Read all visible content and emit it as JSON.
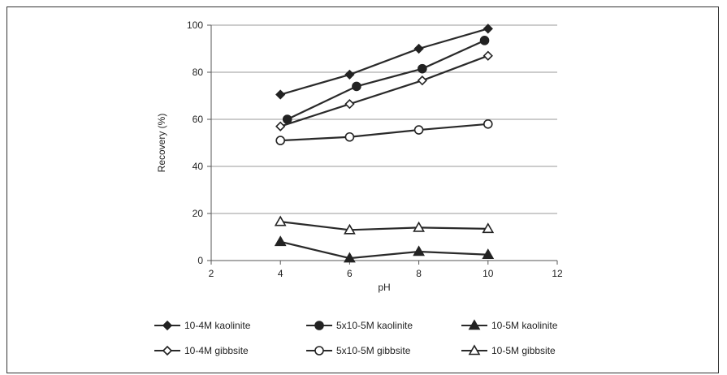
{
  "chart_data": {
    "type": "line",
    "title": "",
    "xlabel": "pH",
    "ylabel": "Recovery (%)",
    "xlim": [
      2,
      12
    ],
    "ylim": [
      0,
      100
    ],
    "xticks": [
      "2",
      "4",
      "6",
      "8",
      "10",
      "12"
    ],
    "yticks": [
      "0",
      "20",
      "40",
      "60",
      "80",
      "100"
    ],
    "grid": "horizontal",
    "legend_position": "bottom",
    "series": [
      {
        "name": "10-4M kaolinite",
        "marker": "diamond-filled",
        "x": [
          4,
          6,
          8,
          10
        ],
        "y": [
          70.5,
          79,
          90,
          98.5
        ]
      },
      {
        "name": "5x10-5M kaolinite",
        "marker": "circle-filled",
        "x": [
          4.2,
          6.2,
          8.1,
          9.9
        ],
        "y": [
          60,
          74,
          81.5,
          93.5
        ]
      },
      {
        "name": "10-5M kaolinite",
        "marker": "triangle-filled",
        "x": [
          4,
          6,
          8,
          10
        ],
        "y": [
          8,
          1,
          3.8,
          2.5
        ]
      },
      {
        "name": "10-4M gibbsite",
        "marker": "diamond-open",
        "x": [
          4,
          6,
          8.1,
          10
        ],
        "y": [
          57,
          66.5,
          76.5,
          87
        ]
      },
      {
        "name": "5x10-5M gibbsite",
        "marker": "circle-open",
        "x": [
          4,
          6,
          8,
          10
        ],
        "y": [
          51,
          52.5,
          55.5,
          58
        ]
      },
      {
        "name": "10-5M gibbsite",
        "marker": "triangle-open",
        "x": [
          4,
          6,
          8,
          10
        ],
        "y": [
          16.5,
          13,
          14,
          13.5
        ]
      }
    ]
  }
}
